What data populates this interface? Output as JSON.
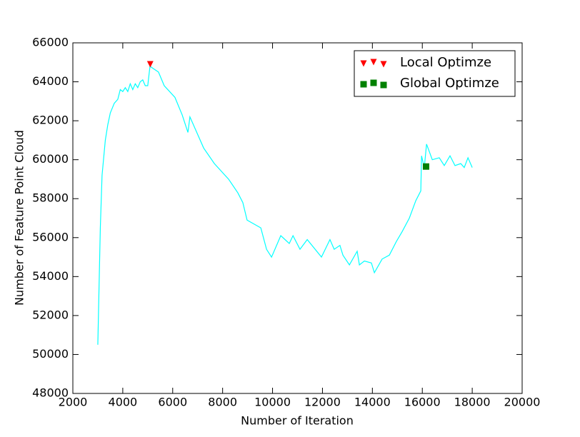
{
  "chart_data": {
    "type": "line",
    "xlabel": "Number of Iteration",
    "ylabel": "Number of Feature Point Cloud",
    "xlim": [
      2000,
      20000
    ],
    "xticks": [
      2000,
      4000,
      6000,
      8000,
      10000,
      12000,
      14000,
      16000,
      18000,
      20000
    ],
    "ylim": [
      48000,
      66000
    ],
    "yticks": [
      48000,
      50000,
      52000,
      54000,
      56000,
      58000,
      60000,
      62000,
      64000,
      66000
    ],
    "legend": "upper right",
    "series": [
      {
        "kind": "line",
        "color": "#00ffff",
        "x": [
          3000,
          3100,
          3170,
          3300,
          3400,
          3500,
          3660,
          3800,
          3900,
          4000,
          4100,
          4200,
          4300,
          4400,
          4500,
          4600,
          4700,
          4800,
          4900,
          5000,
          5090,
          5200,
          5430,
          5660,
          6090,
          6380,
          6610,
          6690,
          7240,
          7670,
          8240,
          8610,
          8810,
          8980,
          9530,
          9760,
          9960,
          10330,
          10670,
          10820,
          11100,
          11390,
          11960,
          12300,
          12470,
          12700,
          12820,
          13080,
          13390,
          13480,
          13680,
          13960,
          14080,
          14390,
          14680,
          14960,
          15190,
          15480,
          15740,
          15940,
          15970,
          16080,
          16170,
          16400,
          16680,
          16880,
          17110,
          17310,
          17540,
          17680,
          17830,
          18000
        ],
        "values": [
          50500,
          56500,
          59200,
          61000,
          61800,
          62400,
          62900,
          63100,
          63600,
          63500,
          63700,
          63500,
          63900,
          63600,
          63900,
          63700,
          64000,
          64100,
          63800,
          63800,
          64800,
          64700,
          64500,
          63800,
          63200,
          62300,
          61400,
          62200,
          60600,
          59800,
          59000,
          58300,
          57800,
          56900,
          56500,
          55400,
          55000,
          56100,
          55700,
          56100,
          55400,
          55900,
          55000,
          55900,
          55400,
          55600,
          55100,
          54600,
          55300,
          54600,
          54800,
          54700,
          54200,
          54900,
          55100,
          55800,
          56300,
          57000,
          57900,
          58400,
          60200,
          59600,
          60800,
          60000,
          60100,
          59700,
          60200,
          59700,
          59800,
          59600,
          60100,
          59600
        ]
      },
      {
        "kind": "scatter",
        "name": "Local Optimze",
        "marker": "triangle-down",
        "color": "#ff0000",
        "x": [
          5100
        ],
        "values": [
          64900
        ]
      },
      {
        "kind": "scatter",
        "name": "Global Optimze",
        "marker": "square",
        "color": "#008000",
        "x": [
          16150
        ],
        "values": [
          59650
        ]
      }
    ]
  }
}
